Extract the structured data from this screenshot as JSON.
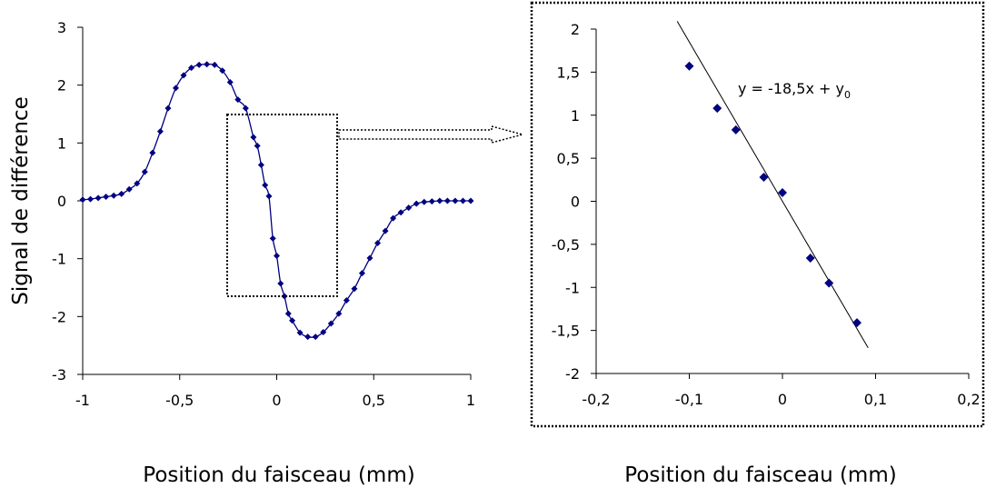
{
  "chart_data": [
    {
      "type": "line",
      "title": "",
      "xlabel": "Position du faisceau (mm)",
      "ylabel": "Signal de différence",
      "xlim": [
        -1,
        1
      ],
      "ylim": [
        -3,
        3
      ],
      "xticks": [
        "-1",
        "-0,5",
        "0",
        "0,5",
        "1"
      ],
      "yticks": [
        "3",
        "2",
        "1",
        "0",
        "-1",
        "-2",
        "-3"
      ],
      "grid": false,
      "legend": "none",
      "series": [
        {
          "color": "#000080",
          "marker": "diamond",
          "x": [
            -1.0,
            -0.96,
            -0.92,
            -0.88,
            -0.84,
            -0.8,
            -0.76,
            -0.72,
            -0.68,
            -0.64,
            -0.6,
            -0.56,
            -0.52,
            -0.48,
            -0.44,
            -0.4,
            -0.36,
            -0.32,
            -0.28,
            -0.24,
            -0.2,
            -0.16,
            -0.12,
            -0.1,
            -0.08,
            -0.06,
            -0.04,
            -0.02,
            0.0,
            0.02,
            0.04,
            0.06,
            0.08,
            0.12,
            0.16,
            0.2,
            0.24,
            0.28,
            0.32,
            0.36,
            0.4,
            0.44,
            0.48,
            0.52,
            0.56,
            0.6,
            0.64,
            0.68,
            0.72,
            0.76,
            0.8,
            0.84,
            0.88,
            0.92,
            0.96,
            1.0
          ],
          "y": [
            0.02,
            0.03,
            0.05,
            0.07,
            0.09,
            0.12,
            0.2,
            0.3,
            0.5,
            0.83,
            1.2,
            1.6,
            1.95,
            2.17,
            2.3,
            2.35,
            2.36,
            2.35,
            2.25,
            2.05,
            1.75,
            1.6,
            1.1,
            0.95,
            0.62,
            0.27,
            0.08,
            -0.65,
            -0.95,
            -1.43,
            -1.65,
            -1.95,
            -2.07,
            -2.28,
            -2.35,
            -2.35,
            -2.27,
            -2.12,
            -1.95,
            -1.72,
            -1.52,
            -1.25,
            -0.99,
            -0.73,
            -0.52,
            -0.3,
            -0.2,
            -0.12,
            -0.05,
            -0.02,
            -0.01,
            0.0,
            0.0,
            0.0,
            0.0,
            0.0
          ]
        }
      ]
    },
    {
      "type": "scatter",
      "title": "",
      "xlabel": "Position du faisceau (mm)",
      "ylabel": "",
      "xlim": [
        -0.2,
        0.2
      ],
      "ylim": [
        -2,
        2
      ],
      "xticks": [
        "-0,2",
        "-0,1",
        "0",
        "0,1",
        "0,2"
      ],
      "yticks": [
        "2",
        "1,5",
        "1",
        "0,5",
        "0",
        "-0,5",
        "-1",
        "-1,5",
        "-2"
      ],
      "grid": false,
      "legend": "none",
      "annotation": {
        "text": "y = -18,5x + y",
        "subscript": "0"
      },
      "fit_line": {
        "slope": -18.5,
        "intercept": 0.0,
        "x_range": [
          -0.113,
          0.092
        ]
      },
      "series": [
        {
          "color": "#000080",
          "marker": "diamond",
          "x": [
            -0.1,
            -0.07,
            -0.05,
            -0.02,
            0.0,
            0.03,
            0.05,
            0.08
          ],
          "y": [
            1.57,
            1.08,
            0.83,
            0.28,
            0.1,
            -0.66,
            -0.95,
            -1.41
          ]
        }
      ]
    }
  ]
}
